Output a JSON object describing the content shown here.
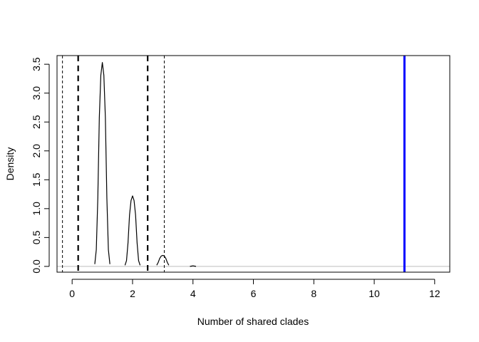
{
  "chart_data": {
    "type": "line",
    "title": "",
    "xlabel": "Number of shared clades",
    "ylabel": "Density",
    "xlim": [
      -0.5,
      12.5
    ],
    "ylim": [
      -0.1,
      3.65
    ],
    "x_ticks": [
      0,
      2,
      4,
      6,
      8,
      10,
      12
    ],
    "x_tick_labels": [
      "0",
      "2",
      "4",
      "6",
      "8",
      "10",
      "12"
    ],
    "y_ticks": [
      0.0,
      0.5,
      1.0,
      1.5,
      2.0,
      2.5,
      3.0,
      3.5
    ],
    "y_tick_labels": [
      "0.0",
      "0.5",
      "1.0",
      "1.5",
      "2.0",
      "2.5",
      "3.0",
      "3.5"
    ],
    "grid": false,
    "legend": "none",
    "series": [
      {
        "color": "#000000",
        "peaks": [
          {
            "center": 1.0,
            "height": 3.53
          },
          {
            "center": 2.0,
            "height": 1.22
          },
          {
            "center": 3.0,
            "height": 0.19
          },
          {
            "center": 4.0,
            "height": 0.01
          }
        ],
        "x": [
          0.75,
          0.8,
          0.85,
          0.9,
          0.95,
          1.0,
          1.05,
          1.1,
          1.15,
          1.2,
          1.25,
          1.75,
          1.8,
          1.85,
          1.9,
          1.95,
          2.0,
          2.05,
          2.1,
          2.15,
          2.2,
          2.25,
          2.8,
          2.85,
          2.9,
          2.95,
          3.0,
          3.05,
          3.1,
          3.15,
          3.2,
          3.9,
          3.95,
          4.0,
          4.05,
          4.1
        ],
        "y": [
          0.04,
          0.29,
          1.18,
          2.58,
          3.31,
          3.53,
          3.31,
          2.58,
          1.18,
          0.29,
          0.04,
          0.02,
          0.1,
          0.41,
          0.89,
          1.14,
          1.22,
          1.14,
          0.89,
          0.41,
          0.1,
          0.02,
          0.02,
          0.07,
          0.14,
          0.18,
          0.19,
          0.18,
          0.14,
          0.07,
          0.02,
          0.0,
          0.005,
          0.01,
          0.005,
          0.0
        ]
      }
    ],
    "baseline": {
      "y": 0,
      "color": "#bebebe"
    },
    "vlines": [
      {
        "x": -0.32,
        "color": "#000000",
        "style": "dashed-thin"
      },
      {
        "x": 0.2,
        "color": "#000000",
        "style": "dashed-thick"
      },
      {
        "x": 2.5,
        "color": "#000000",
        "style": "dashed-thick"
      },
      {
        "x": 3.05,
        "color": "#000000",
        "style": "dashed-thin"
      },
      {
        "x": 11.0,
        "color": "#0000ff",
        "style": "solid-thick"
      }
    ]
  }
}
